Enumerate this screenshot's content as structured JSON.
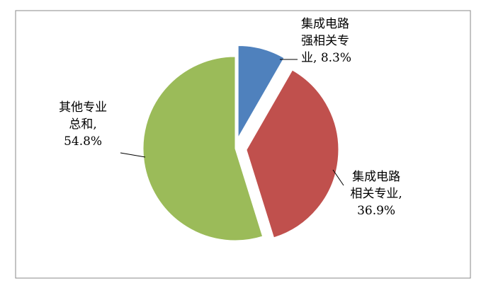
{
  "chart_data": {
    "type": "pie",
    "categories": [
      "集成电路强相关专业",
      "集成电路相关专业",
      "其他专业总和"
    ],
    "values": [
      8.3,
      36.9,
      54.8
    ],
    "value_labels": [
      "8.3%",
      "36.9%",
      "54.8%"
    ],
    "colors": [
      "#4f81bd",
      "#c0504d",
      "#9bbb59"
    ],
    "exploded": [
      true,
      true,
      false
    ]
  }
}
